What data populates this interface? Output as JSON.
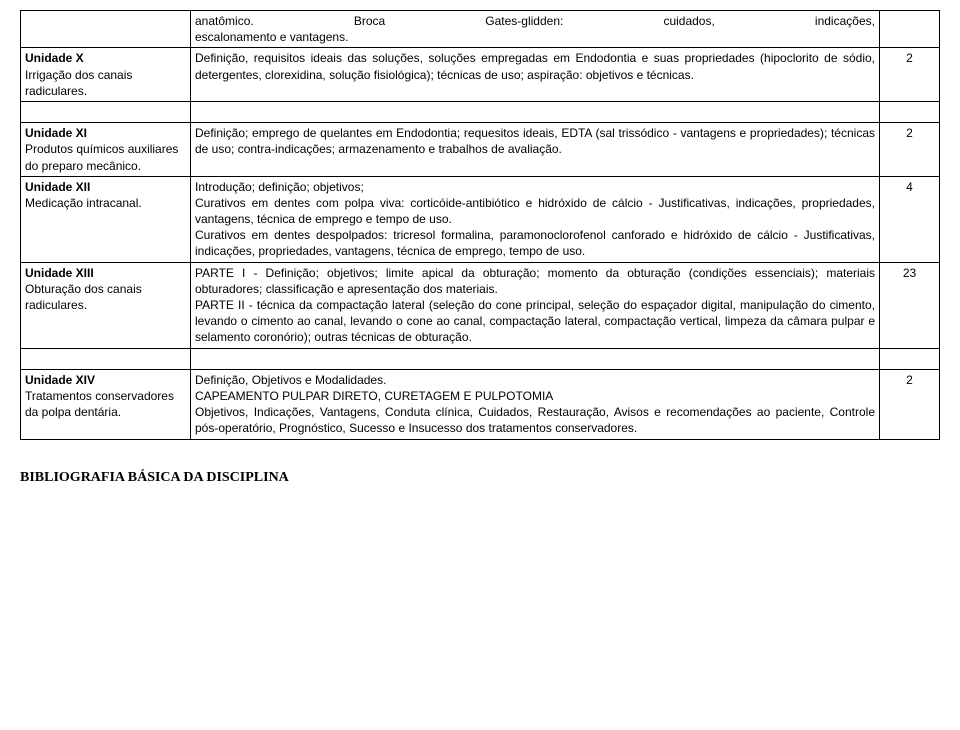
{
  "rows": [
    {
      "col1": "",
      "col2_html": "<span class=\"hdr\"><span>anatômico.</span><span>Broca</span><span>Gates-glidden:</span><span>cuidados,</span><span>indicações,</span></span>escalonamento e vantagens.",
      "col3": ""
    },
    {
      "col1": "<span class=\"bold\">Unidade X</span><br> Irrigação dos canais radiculares.",
      "col2": "Definição, requisitos ideais das soluções, soluções empregadas em Endodontia e suas propriedades (hipoclorito de sódio, detergentes, clorexidina, solução fisiológica); técnicas de uso; aspiração: objetivos e técnicas.",
      "col3": "2"
    },
    {
      "col1": "<span class=\"bold\">Unidade XI</span><br> Produtos químicos auxiliares do preparo mecânico.",
      "col2": "Definição; emprego de quelantes em Endodontia; requesitos ideais, EDTA (sal trissódico - vantagens e propriedades); técnicas de uso; contra-indicações; armazenamento e trabalhos de avaliação.",
      "col3": "2"
    },
    {
      "col1": "<span class=\"bold\">Unidade XII</span><br>Medicação intracanal.",
      "col2_html": "Introdução; definição; objetivos;<br>Curativos em dentes com polpa viva: corticóide-antibiótico e hidróxido de cálcio - Justificativas, indicações, propriedades, vantagens, técnica de emprego e tempo de uso.<br>Curativos em dentes despolpados: tricresol formalina, paramonoclorofenol canforado e hidróxido de cálcio - Justificativas, indicações, propriedades, vantagens, técnica de emprego, tempo de uso.",
      "col3": "4"
    },
    {
      "col1": "<span class=\"bold\">Unidade XIII</span><br>Obturação dos canais radiculares.",
      "col2_html": "PARTE I - Definição; objetivos; limite apical da obturação; momento da obturação (condições essenciais); materiais obturadores; classificação e apresentação dos materiais.<br>PARTE II - técnica da compactação lateral (seleção do cone principal, seleção do espaçador digital, manipulação do cimento, levando o cimento ao canal, levando o cone ao canal, compactação lateral, compactação vertical, limpeza da câmara pulpar e selamento coronório); outras técnicas de obturação.",
      "col3": "23"
    },
    {
      "col1": "<span class=\"bold\">Unidade XIV</span><br>Tratamentos conservadores da polpa dentária.",
      "col2_html": "Definição, Objetivos e Modalidades.<br>CAPEAMENTO PULPAR DIRETO, CURETAGEM E PULPOTOMIA<br>Objetivos, Indicações, Vantagens, Conduta clínica, Cuidados, Restauração, Avisos e recomendações ao paciente, Controle pós-operatório, Prognóstico, Sucesso e Insucesso dos tratamentos conservadores.",
      "col3": "2"
    }
  ],
  "footer": "BIBLIOGRAFIA BÁSICA DA DISCIPLINA"
}
